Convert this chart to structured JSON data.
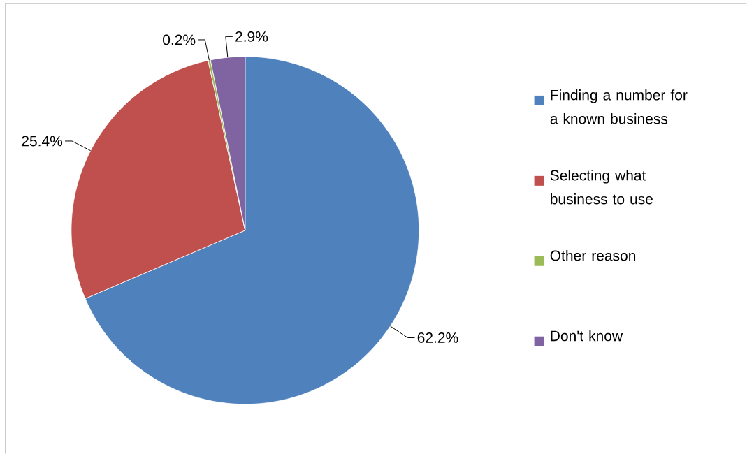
{
  "chart_data": {
    "type": "pie",
    "categories": [
      "Finding a number for a known business",
      "Selecting what business to use",
      "Other reason",
      "Don't know"
    ],
    "values": [
      62.2,
      25.4,
      0.2,
      2.9
    ],
    "colors": [
      "#4f81bd",
      "#c0504d",
      "#9bbb59",
      "#8064a2"
    ],
    "value_labels": [
      "62.2%",
      "25.4%",
      "0.2%",
      "2.9%"
    ],
    "legend": "right"
  }
}
